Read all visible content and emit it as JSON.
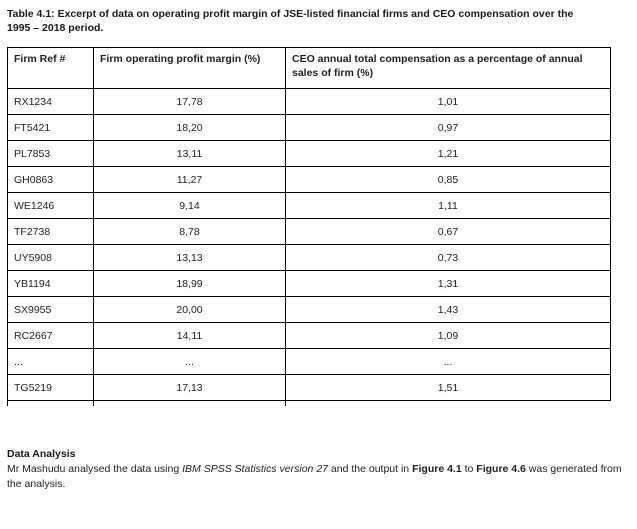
{
  "page": {
    "title_line1": "Table 4.1: Excerpt of data on operating profit margin of JSE-listed financial firms and CEO compensation over the",
    "title_line2": "1995 – 2018 period."
  },
  "table": {
    "columns": [
      "Firm Ref #",
      "Firm operating profit margin (%)",
      "CEO annual total compensation as a percentage of annual sales of firm (%)"
    ],
    "rows": [
      [
        "RX1234",
        "17,78",
        "1,01"
      ],
      [
        "FT5421",
        "18,20",
        "0,97"
      ],
      [
        "PL7853",
        "13,11",
        "1,21"
      ],
      [
        "GH0863",
        "11,27",
        "0,85"
      ],
      [
        "WE1246",
        "9,14",
        "1,11"
      ],
      [
        "TF2738",
        "8,78",
        "0,67"
      ],
      [
        "UY5908",
        "13,13",
        "0,73"
      ],
      [
        "YB1194",
        "18,99",
        "1,31"
      ],
      [
        "SX9955",
        "20,00",
        "1,43"
      ],
      [
        "RC2667",
        "14,11",
        "1,09"
      ],
      [
        "...",
        "...",
        "..."
      ],
      [
        "TG5219",
        "17,13",
        "1,51"
      ]
    ]
  },
  "data_analysis": {
    "heading": "Data Analysis",
    "paragraph_segments": [
      {
        "text": "Mr Mashudu analysed the data using ",
        "style": "normal"
      },
      {
        "text": "IBM SPSS Statistics version 27",
        "style": "italic"
      },
      {
        "text": " and the output in ",
        "style": "normal"
      },
      {
        "text": "Figure 4.1",
        "style": "bold"
      },
      {
        "text": " to ",
        "style": "normal"
      },
      {
        "text": "Figure 4.6",
        "style": "bold"
      },
      {
        "text": " was generated from the analysis.",
        "style": "normal"
      }
    ]
  },
  "colors": {
    "background": "#ffffff",
    "text": "#1f1f1f",
    "border": "#000000"
  }
}
